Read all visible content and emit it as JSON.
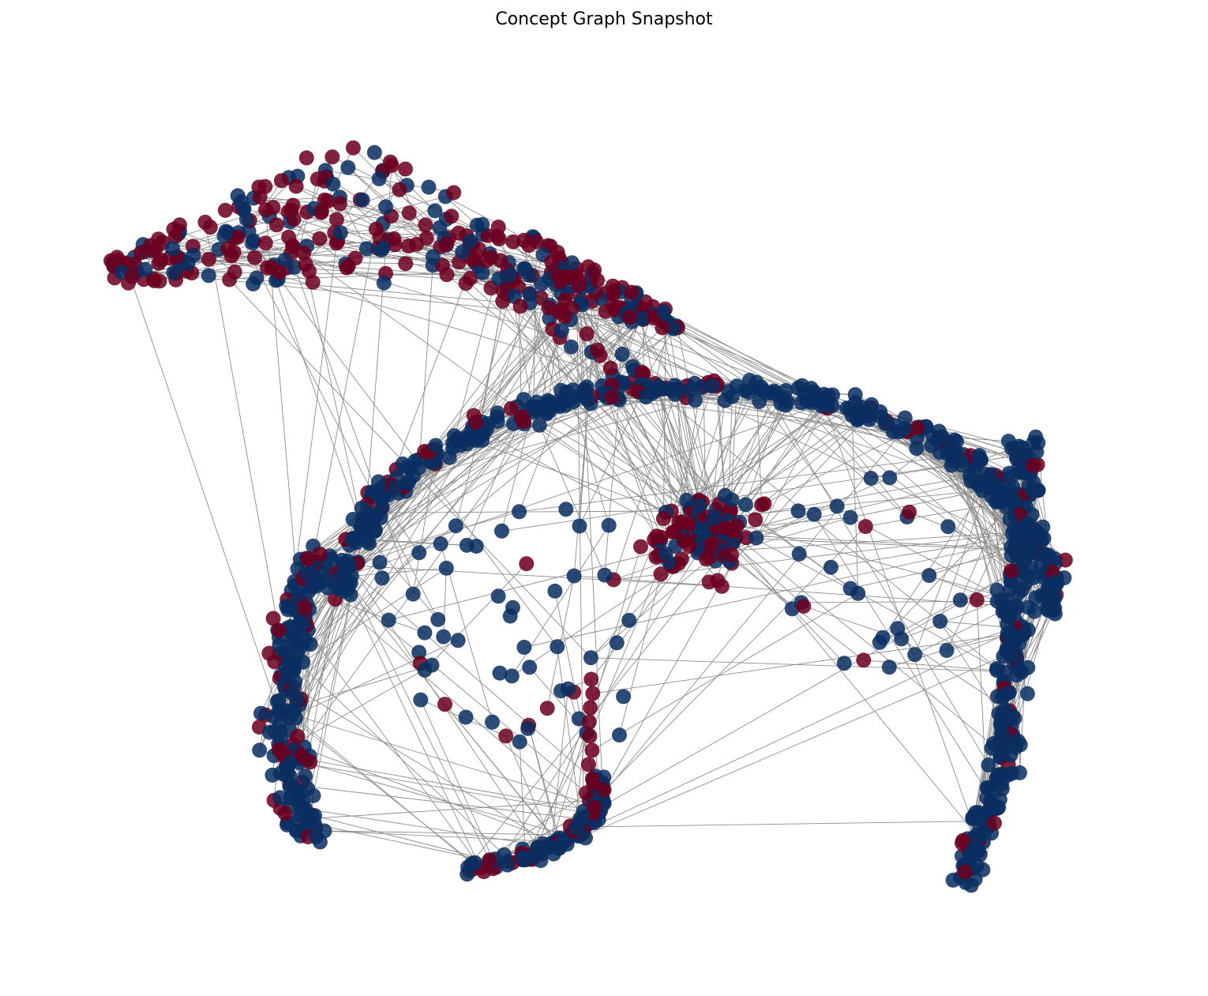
{
  "title": "Concept Graph Snapshot",
  "colors": {
    "background": "#ffffff",
    "edge": "#8c8c8c",
    "node_red": "#6b0020",
    "node_blue": "#0b2f61"
  },
  "graph": {
    "node_count_shown": 1100,
    "categories": [
      "red",
      "blue"
    ],
    "layout": "force-directed",
    "clusters": [
      {
        "name": "upper-left-lobe",
        "dominant_color": "red"
      },
      {
        "name": "central-ring",
        "dominant_color": "blue"
      },
      {
        "name": "center-core",
        "dominant_color": "red"
      },
      {
        "name": "right-arm",
        "dominant_color": "blue"
      },
      {
        "name": "lower-left-loop",
        "dominant_color": "blue"
      }
    ]
  }
}
